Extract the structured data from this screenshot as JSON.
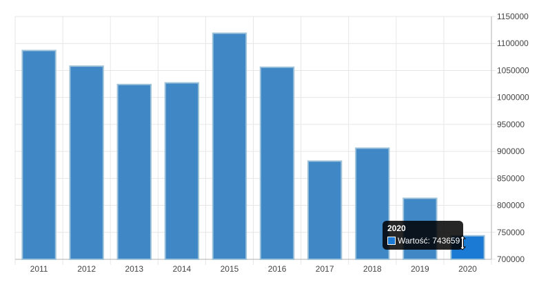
{
  "chart_data": {
    "type": "bar",
    "categories": [
      "2011",
      "2012",
      "2013",
      "2014",
      "2015",
      "2016",
      "2017",
      "2018",
      "2019",
      "2020"
    ],
    "values": [
      1087000,
      1058000,
      1024000,
      1027000,
      1119000,
      1056000,
      882000,
      906000,
      813000,
      743659
    ],
    "ylim": [
      700000,
      1150000
    ],
    "y_ticks": [
      "1150000",
      "1100000",
      "1050000",
      "1000000",
      "950000",
      "900000",
      "850000",
      "800000",
      "750000",
      "700000"
    ],
    "y_axis_position": "right",
    "grid": true,
    "highlighted_index": 9
  },
  "colors": {
    "bar": "#4087c6",
    "bar_border": "#9dc2d9",
    "bar_highlight": "#1b7ad4",
    "grid": "#e6e6e6",
    "axis": "#b0b0b0"
  },
  "tooltip": {
    "title": "2020",
    "label": "Wartość: 743659"
  }
}
